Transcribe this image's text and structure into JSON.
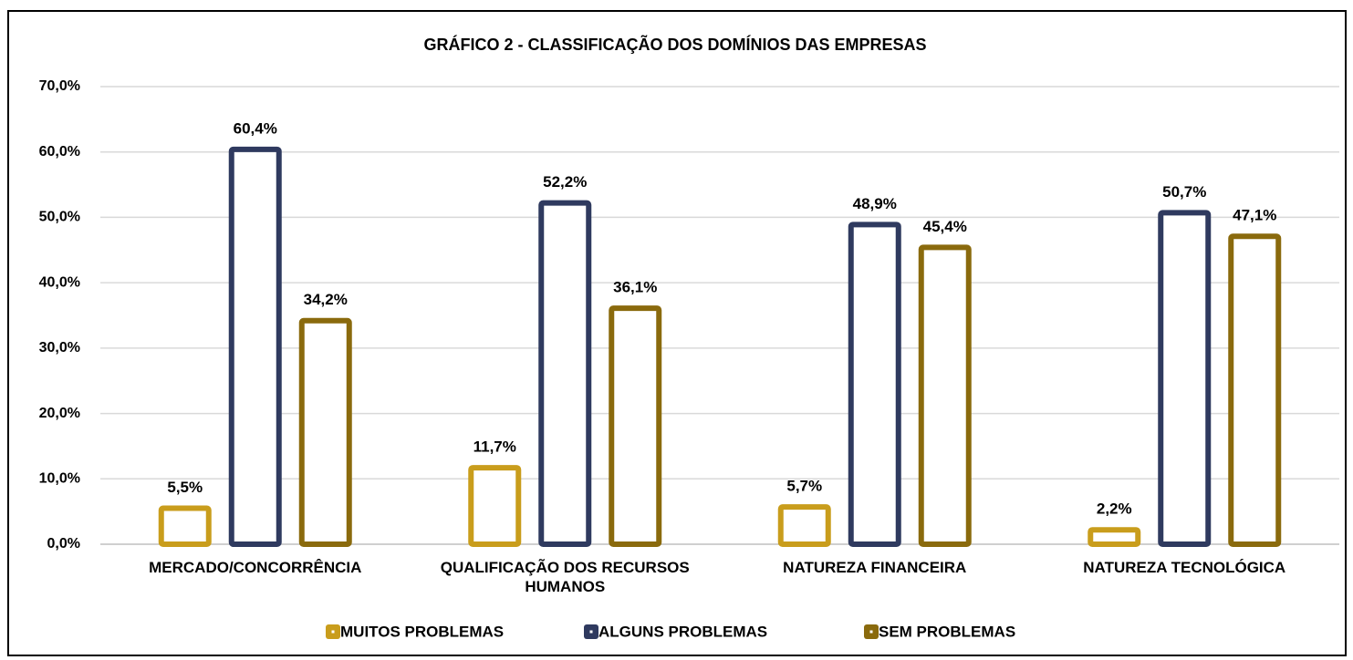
{
  "chart_data": {
    "type": "bar",
    "title": "GRÁFICO 2 - CLASSIFICAÇÃO DOS DOMÍNIOS DAS EMPRESAS",
    "categories": [
      "MERCADO/CONCORRÊNCIA",
      "QUALIFICAÇÃO DOS RECURSOS HUMANOS",
      "NATUREZA FINANCEIRA",
      "NATUREZA TECNOLÓGICA"
    ],
    "series": [
      {
        "name": "MUITOS PROBLEMAS",
        "color": "#c99d1c",
        "values": [
          5.5,
          11.7,
          5.7,
          2.2
        ],
        "value_labels": [
          "5,5%",
          "11,7%",
          "5,7%",
          "2,2%"
        ]
      },
      {
        "name": "ALGUNS PROBLEMAS",
        "color": "#2f3a5f",
        "values": [
          60.4,
          52.2,
          48.9,
          50.7
        ],
        "value_labels": [
          "60,4%",
          "52,2%",
          "48,9%",
          "50,7%"
        ]
      },
      {
        "name": "SEM PROBLEMAS",
        "color": "#8a6a0d",
        "values": [
          34.2,
          36.1,
          45.4,
          47.1
        ],
        "value_labels": [
          "34,2%",
          "36,1%",
          "45,4%",
          "47,1%"
        ]
      }
    ],
    "ylim": [
      0,
      70
    ],
    "yticks": [
      {
        "value": 0,
        "label": "0,0%"
      },
      {
        "value": 10,
        "label": "10,0%"
      },
      {
        "value": 20,
        "label": "20,0%"
      },
      {
        "value": 30,
        "label": "30,0%"
      },
      {
        "value": 40,
        "label": "40,0%"
      },
      {
        "value": 50,
        "label": "50,0%"
      },
      {
        "value": 60,
        "label": "60,0%"
      },
      {
        "value": 70,
        "label": "70,0%"
      }
    ],
    "grid": true,
    "legend": "bottom"
  }
}
